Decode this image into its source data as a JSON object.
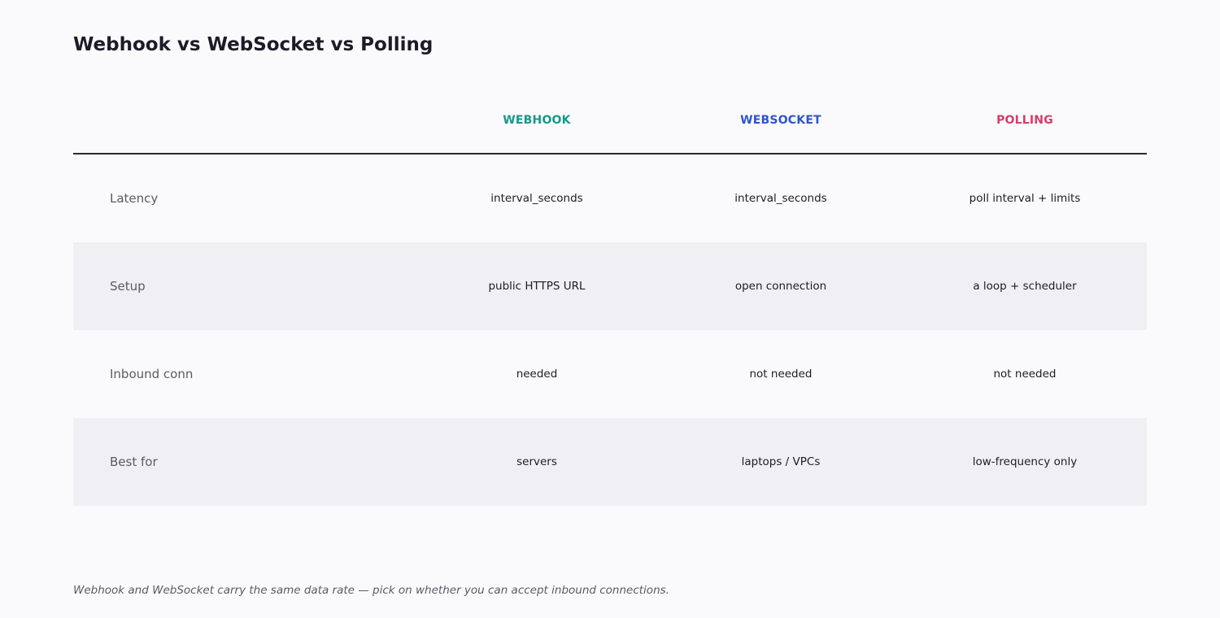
{
  "title": "Webhook vs WebSocket vs Polling",
  "colors": {
    "webhook": "#16998a",
    "websocket": "#2e55c9",
    "polling": "#d43d68"
  },
  "columns": [
    "WEBHOOK",
    "WEBSOCKET",
    "POLLING"
  ],
  "rows": [
    {
      "label": "Latency",
      "cells": [
        "interval_seconds",
        "interval_seconds",
        "poll interval + limits"
      ]
    },
    {
      "label": "Setup",
      "cells": [
        "public HTTPS URL",
        "open connection",
        "a loop + scheduler"
      ]
    },
    {
      "label": "Inbound conn",
      "cells": [
        "needed",
        "not needed",
        "not needed"
      ]
    },
    {
      "label": "Best for",
      "cells": [
        "servers",
        "laptops / VPCs",
        "low-frequency only"
      ]
    }
  ],
  "footnote": "Webhook and WebSocket carry the same data rate — pick on whether you can accept inbound connections."
}
